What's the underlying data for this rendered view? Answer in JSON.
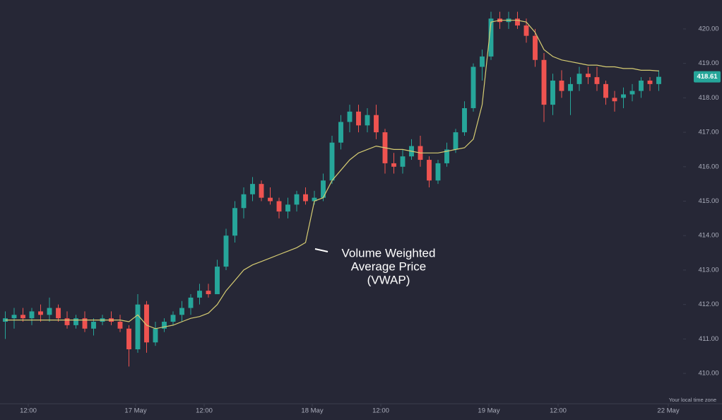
{
  "chart_data": {
    "type": "candlestick",
    "up_color": "#26a69a",
    "down_color": "#ef5350",
    "open": [
      411.5,
      411.6,
      411.7,
      411.6,
      411.8,
      411.7,
      411.9,
      411.6,
      411.4,
      411.6,
      411.3,
      411.5,
      411.6,
      411.5,
      411.3,
      410.7,
      412.0,
      410.9,
      411.3,
      411.5,
      411.7,
      411.9,
      412.2,
      412.4,
      412.3,
      413.1,
      414.0,
      414.8,
      415.2,
      415.5,
      415.1,
      415.0,
      414.7,
      414.9,
      415.2,
      415.0,
      415.1,
      415.6,
      416.7,
      417.3,
      417.6,
      417.2,
      417.5,
      417.0,
      416.1,
      416.0,
      416.3,
      416.6,
      416.2,
      415.6,
      416.1,
      416.5,
      417.0,
      417.7,
      418.9,
      419.2,
      420.3,
      420.2,
      420.3,
      420.1,
      419.8,
      419.1,
      417.8,
      418.5,
      418.2,
      418.4,
      418.7,
      418.6,
      418.4,
      418.0,
      418.0,
      418.1,
      418.2,
      418.5,
      418.4
    ],
    "high": [
      411.8,
      411.9,
      411.9,
      411.9,
      412.0,
      412.2,
      412.0,
      411.8,
      411.7,
      411.8,
      411.6,
      411.7,
      411.8,
      411.7,
      411.4,
      412.3,
      412.1,
      411.5,
      411.6,
      411.8,
      412.1,
      412.3,
      412.6,
      412.6,
      413.3,
      414.2,
      415.0,
      415.4,
      415.7,
      415.6,
      415.4,
      415.1,
      415.1,
      415.3,
      415.4,
      415.3,
      415.8,
      416.9,
      417.5,
      417.8,
      417.8,
      417.7,
      417.8,
      417.1,
      416.4,
      416.5,
      416.8,
      416.9,
      416.3,
      416.2,
      416.7,
      417.1,
      417.9,
      419.0,
      419.4,
      420.5,
      420.5,
      420.5,
      420.5,
      420.3,
      420.0,
      419.3,
      418.7,
      418.8,
      418.6,
      418.9,
      418.9,
      418.9,
      418.5,
      418.2,
      418.3,
      418.4,
      418.6,
      418.6,
      418.8
    ],
    "low": [
      411.0,
      411.3,
      411.5,
      411.4,
      411.5,
      411.5,
      411.5,
      411.3,
      411.3,
      411.2,
      411.1,
      411.4,
      411.4,
      411.2,
      410.2,
      410.6,
      410.6,
      410.8,
      411.2,
      411.4,
      411.5,
      411.7,
      412.0,
      412.2,
      412.3,
      413.0,
      413.8,
      414.5,
      415.0,
      415.0,
      414.9,
      414.5,
      414.5,
      414.7,
      414.9,
      414.9,
      415.0,
      415.5,
      416.5,
      417.0,
      417.0,
      417.0,
      416.8,
      415.8,
      415.8,
      415.8,
      416.2,
      416.0,
      415.4,
      415.5,
      416.0,
      416.4,
      416.9,
      417.6,
      418.5,
      419.1,
      420.0,
      420.0,
      420.0,
      419.6,
      418.9,
      417.3,
      417.5,
      418.0,
      417.5,
      418.2,
      418.4,
      418.2,
      417.8,
      417.6,
      417.7,
      417.9,
      418.0,
      418.2,
      418.2
    ],
    "close": [
      411.6,
      411.7,
      411.6,
      411.8,
      411.7,
      411.9,
      411.6,
      411.4,
      411.6,
      411.3,
      411.5,
      411.6,
      411.5,
      411.3,
      410.7,
      412.0,
      410.9,
      411.3,
      411.5,
      411.7,
      411.9,
      412.2,
      412.4,
      412.3,
      413.1,
      414.0,
      414.8,
      415.2,
      415.5,
      415.1,
      415.0,
      414.7,
      414.9,
      415.2,
      415.0,
      415.1,
      415.6,
      416.7,
      417.3,
      417.6,
      417.2,
      417.5,
      417.0,
      416.1,
      416.0,
      416.3,
      416.6,
      416.2,
      415.6,
      416.1,
      416.5,
      417.0,
      417.7,
      418.9,
      419.2,
      420.3,
      420.2,
      420.3,
      420.1,
      419.8,
      419.1,
      417.8,
      418.5,
      418.2,
      418.4,
      418.7,
      418.6,
      418.4,
      418.0,
      417.9,
      418.1,
      418.2,
      418.5,
      418.4,
      418.61
    ],
    "vwap": {
      "color": "#d6cc72",
      "values": [
        411.55,
        411.55,
        411.55,
        411.55,
        411.55,
        411.55,
        411.55,
        411.55,
        411.55,
        411.55,
        411.55,
        411.55,
        411.55,
        411.55,
        411.5,
        411.7,
        411.4,
        411.3,
        411.35,
        411.4,
        411.5,
        411.6,
        411.65,
        411.75,
        412.0,
        412.4,
        412.7,
        413.0,
        413.15,
        413.25,
        413.35,
        413.45,
        413.55,
        413.65,
        413.8,
        415.0,
        415.1,
        415.6,
        415.9,
        416.2,
        416.4,
        416.5,
        416.6,
        416.55,
        416.5,
        416.5,
        416.45,
        416.4,
        416.4,
        416.4,
        416.45,
        416.5,
        416.55,
        416.8,
        417.8,
        420.2,
        420.25,
        420.25,
        420.25,
        420.2,
        419.9,
        419.4,
        419.2,
        419.1,
        419.05,
        419.0,
        418.95,
        418.95,
        418.9,
        418.9,
        418.85,
        418.85,
        418.8,
        418.8,
        418.78
      ]
    },
    "last_price": 418.61,
    "xlim": [
      -0.6,
      76.6
    ],
    "xticks": [
      {
        "value": 2.6,
        "label": "12:00"
      },
      {
        "value": 14.76,
        "label": "17 May"
      },
      {
        "value": 22.52,
        "label": "12:00"
      },
      {
        "value": 34.76,
        "label": "18 May"
      },
      {
        "value": 42.52,
        "label": "12:00"
      },
      {
        "value": 54.76,
        "label": "19 May"
      },
      {
        "value": 62.6,
        "label": "12:00"
      },
      {
        "value": 75.08,
        "label": "22 May"
      }
    ],
    "ylim": [
      409.14,
      420.84
    ],
    "yticks": [
      {
        "value": 410,
        "label": "410.00"
      },
      {
        "value": 411,
        "label": "411.00"
      },
      {
        "value": 412,
        "label": "412.00"
      },
      {
        "value": 413,
        "label": "413.00"
      },
      {
        "value": 414,
        "label": "414.00"
      },
      {
        "value": 415,
        "label": "415.00"
      },
      {
        "value": 416,
        "label": "416.00"
      },
      {
        "value": 417,
        "label": "417.00"
      },
      {
        "value": 418,
        "label": "418.00"
      },
      {
        "value": 419,
        "label": "419.00"
      },
      {
        "value": 420,
        "label": "420.00"
      }
    ],
    "annotation": [
      "Volume Weighted",
      "Average Price",
      "(VWAP)"
    ],
    "timezone_note": "Your local time zone"
  }
}
